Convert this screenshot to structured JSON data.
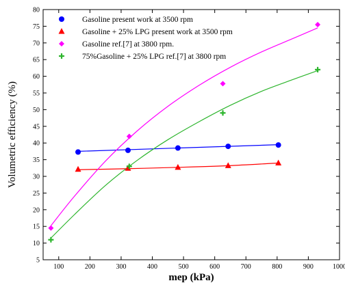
{
  "chart_data": {
    "type": "scatter",
    "title": "",
    "xlabel": "mep (kPa)",
    "ylabel": "Volumetric efficiency (%)",
    "xlim": [
      50,
      1000
    ],
    "ylim": [
      5,
      80
    ],
    "xticks": [
      100,
      200,
      300,
      400,
      500,
      600,
      700,
      800,
      900,
      1000
    ],
    "yticks": [
      5,
      10,
      15,
      20,
      25,
      30,
      35,
      40,
      45,
      50,
      55,
      60,
      65,
      70,
      75,
      80
    ],
    "grid": false,
    "legend_position": "top-left",
    "series": [
      {
        "name": "Gasoline present work at 3500 rpm",
        "marker": "circle",
        "color": "#0000ff",
        "x": [
          162,
          322,
          482,
          643,
          804
        ],
        "y": [
          37.3,
          37.8,
          38.5,
          39.0,
          39.4
        ],
        "fit": [
          [
            162,
            37.5
          ],
          [
            804,
            39.5
          ]
        ]
      },
      {
        "name": "Gasoline + 25% LPG present work at 3500 rpm",
        "marker": "triangle",
        "color": "#ff0000",
        "x": [
          162,
          322,
          482,
          643,
          804
        ],
        "y": [
          32.1,
          32.4,
          32.7,
          33.2,
          34.0
        ],
        "fit": [
          [
            162,
            32.0
          ],
          [
            322,
            32.3
          ],
          [
            482,
            32.7
          ],
          [
            643,
            33.2
          ],
          [
            804,
            34.0
          ]
        ]
      },
      {
        "name": "Gasoline ref.[7] at 3800 rpm.",
        "marker": "diamond",
        "color": "#ff00ff",
        "x": [
          75,
          326,
          626,
          930
        ],
        "y": [
          14.5,
          42.0,
          57.8,
          75.5
        ],
        "fit": [
          [
            75,
            15.2
          ],
          [
            150,
            24.0
          ],
          [
            250,
            34.6
          ],
          [
            350,
            43.5
          ],
          [
            450,
            51.0
          ],
          [
            550,
            57.3
          ],
          [
            650,
            62.7
          ],
          [
            750,
            67.3
          ],
          [
            850,
            71.3
          ],
          [
            930,
            74.5
          ]
        ]
      },
      {
        "name": "75%Gasoline + 25% LPG ref.[7] at 3800 rpm",
        "marker": "plus",
        "color": "#2db52d",
        "x": [
          75,
          326,
          626,
          930
        ],
        "y": [
          11.0,
          33.0,
          49.0,
          62.0
        ],
        "fit": [
          [
            75,
            11.5
          ],
          [
            150,
            18.5
          ],
          [
            250,
            27.3
          ],
          [
            350,
            34.7
          ],
          [
            450,
            41.0
          ],
          [
            550,
            46.4
          ],
          [
            650,
            51.3
          ],
          [
            750,
            55.5
          ],
          [
            850,
            59.0
          ],
          [
            930,
            61.7
          ]
        ]
      }
    ]
  }
}
